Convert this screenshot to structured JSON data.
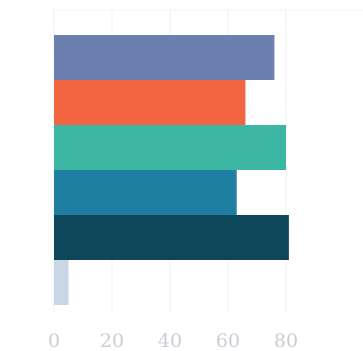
{
  "chart_data": {
    "type": "bar",
    "orientation": "horizontal",
    "categories": [
      "",
      "",
      "",
      "",
      "",
      ""
    ],
    "values": [
      76,
      66,
      80,
      63,
      81,
      5
    ],
    "colors": [
      "#6b7fb0",
      "#f26541",
      "#3cb7a4",
      "#1f7ea2",
      "#0e4759",
      "#c8d6e6"
    ],
    "xlim": [
      0,
      90
    ],
    "xticks": [
      "0",
      "20",
      "40",
      "60",
      "80"
    ],
    "xtick_values": [
      0,
      20,
      40,
      60,
      80
    ],
    "title": "",
    "xlabel": "",
    "ylabel": "",
    "grid": "vertical",
    "legend": "none"
  }
}
